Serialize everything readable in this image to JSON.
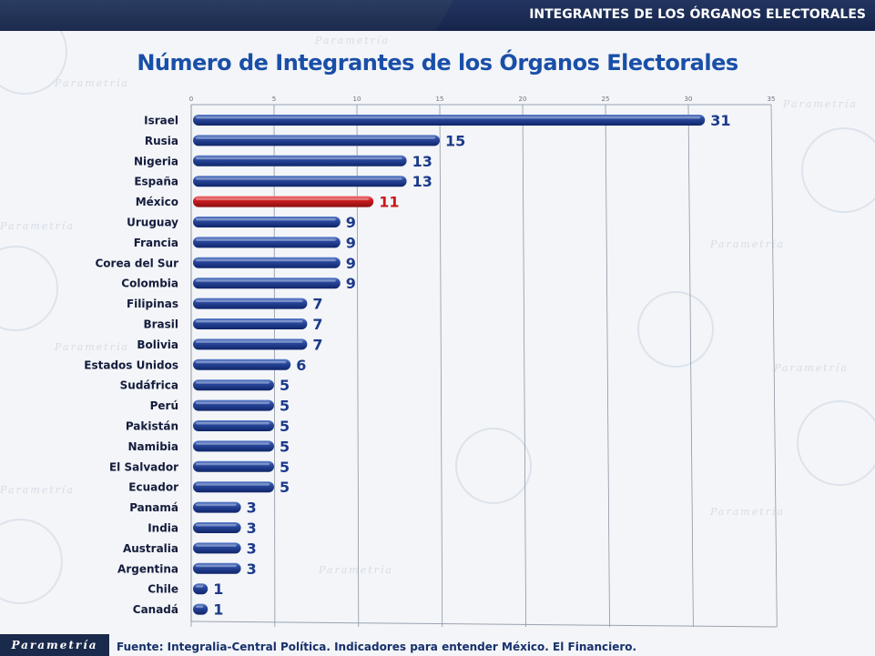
{
  "header": {
    "section_title": "INTEGRANTES DE LOS ÓRGANOS ELECTORALES"
  },
  "watermark": {
    "text": "Parametría"
  },
  "footer": {
    "logo_text": "Parametría",
    "source": "Fuente: Integralia-Central Política. Indicadores para entender México. El Financiero."
  },
  "colors": {
    "bar": "#1c3a8a",
    "highlight": "#c8181b",
    "label": "#1c3a8a",
    "highlight_label": "#c8181b"
  },
  "chart_data": {
    "type": "bar",
    "orientation": "horizontal",
    "title": "Número de Integrantes de los Órganos Electorales",
    "xlabel": "",
    "ylabel": "",
    "xlim": [
      0,
      35
    ],
    "ticks": [
      0,
      5,
      10,
      15,
      20,
      25,
      30,
      35
    ],
    "grid": true,
    "highlight": "México",
    "categories": [
      "Israel",
      "Rusia",
      "Nigeria",
      "España",
      "México",
      "Uruguay",
      "Francia",
      "Corea del Sur",
      "Colombia",
      "Filipinas",
      "Brasil",
      "Bolivia",
      "Estados Unidos",
      "Sudáfrica",
      "Perú",
      "Pakistán",
      "Namibia",
      "El Salvador",
      "Ecuador",
      "Panamá",
      "India",
      "Australia",
      "Argentina",
      "Chile",
      "Canadá"
    ],
    "values": [
      31,
      15,
      13,
      13,
      11,
      9,
      9,
      9,
      9,
      7,
      7,
      7,
      6,
      5,
      5,
      5,
      5,
      5,
      5,
      3,
      3,
      3,
      3,
      1,
      1
    ]
  }
}
